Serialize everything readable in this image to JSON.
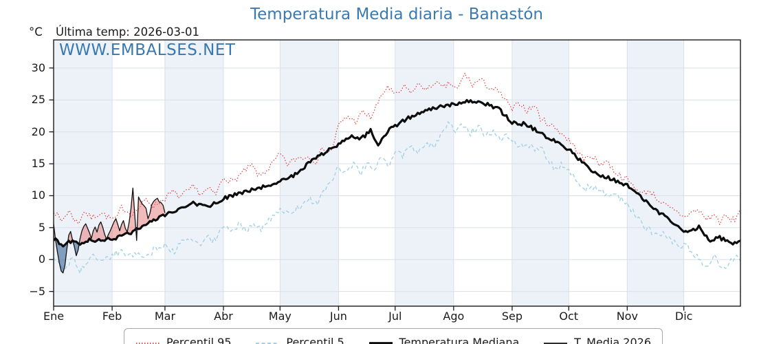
{
  "title": {
    "text": "Temperatura Media diaria - Banastón",
    "color": "#3c79ae"
  },
  "annotations": {
    "y_unit": "°C",
    "last_temp": "Última temp: 2026-03-01",
    "watermark": "WWW.EMBALSES.NET",
    "watermark_color": "#3878af"
  },
  "legend": {
    "items": [
      {
        "label": "Percentil 95"
      },
      {
        "label": "Percentil 5"
      },
      {
        "label": "Temperatura Mediana"
      },
      {
        "label": "T. Media 2026"
      }
    ]
  },
  "chart_data": {
    "type": "line",
    "title": "Temperatura Media diaria - Banastón",
    "ylabel": "°C",
    "x_axis": {
      "tick_labels": [
        "Ene",
        "Feb",
        "Mar",
        "Abr",
        "May",
        "Jun",
        "Jul",
        "Ago",
        "Sep",
        "Oct",
        "Nov",
        "Dic"
      ],
      "month_days": [
        31,
        28,
        31,
        30,
        31,
        30,
        31,
        31,
        30,
        31,
        30,
        31
      ]
    },
    "y_axis": {
      "ticks": [
        -5,
        0,
        5,
        10,
        15,
        20,
        25,
        30
      ],
      "range": [
        -7.3,
        34.4
      ],
      "minus_glyph": "−"
    },
    "background": {
      "odd_month_band": "#edf2f9",
      "even_month_band": "#ffffff",
      "grid_color": "#d9dfe8",
      "frame_color": "#1a1a1a"
    },
    "fills": {
      "between": [
        "T. Media 2026",
        "Temperatura Mediana"
      ],
      "above_color": "rgba(226,104,104,0.45)",
      "below_color": "rgba(60,100,150,0.60)"
    },
    "noise_seed": 7,
    "series": [
      {
        "name": "Percentil 95",
        "color": "#dd3c3c",
        "style": "dotted",
        "width": 1.2,
        "noise_amp": 0.5,
        "points": [
          [
            0,
            7.8
          ],
          [
            4,
            6.0
          ],
          [
            8,
            7.6
          ],
          [
            13,
            5.6
          ],
          [
            16,
            7.6
          ],
          [
            20,
            6.5
          ],
          [
            25,
            7.4
          ],
          [
            29,
            6.6
          ],
          [
            33,
            6.2
          ],
          [
            36,
            8.2
          ],
          [
            41,
            7.2
          ],
          [
            45,
            8.0
          ],
          [
            49,
            9.4
          ],
          [
            53,
            8.4
          ],
          [
            59,
            9.6
          ],
          [
            63,
            10.6
          ],
          [
            67,
            9.8
          ],
          [
            74,
            11.3
          ],
          [
            78,
            10.3
          ],
          [
            82,
            11.0
          ],
          [
            86,
            10.2
          ],
          [
            90,
            12.9
          ],
          [
            95,
            12.2
          ],
          [
            100,
            13.6
          ],
          [
            105,
            14.7
          ],
          [
            109,
            13.0
          ],
          [
            114,
            14.3
          ],
          [
            120,
            16.5
          ],
          [
            124,
            14.9
          ],
          [
            129,
            15.9
          ],
          [
            135,
            16.1
          ],
          [
            139,
            15.4
          ],
          [
            143,
            17.6
          ],
          [
            147,
            16.8
          ],
          [
            151,
            21.0
          ],
          [
            156,
            22.4
          ],
          [
            160,
            21.6
          ],
          [
            164,
            23.1
          ],
          [
            168,
            22.2
          ],
          [
            172,
            24.6
          ],
          [
            177,
            27.2
          ],
          [
            181,
            25.6
          ],
          [
            186,
            27.0
          ],
          [
            190,
            26.2
          ],
          [
            194,
            27.6
          ],
          [
            198,
            26.4
          ],
          [
            202,
            27.9
          ],
          [
            206,
            26.8
          ],
          [
            210,
            27.6
          ],
          [
            214,
            26.6
          ],
          [
            218,
            29.1
          ],
          [
            222,
            27.3
          ],
          [
            226,
            28.2
          ],
          [
            231,
            26.9
          ],
          [
            235,
            26.4
          ],
          [
            239,
            25.2
          ],
          [
            243,
            23.4
          ],
          [
            247,
            24.6
          ],
          [
            251,
            23.3
          ],
          [
            255,
            24.2
          ],
          [
            258,
            22.1
          ],
          [
            263,
            21.1
          ],
          [
            267,
            20.4
          ],
          [
            273,
            18.7
          ],
          [
            277,
            17.3
          ],
          [
            281,
            15.6
          ],
          [
            285,
            16.4
          ],
          [
            289,
            14.9
          ],
          [
            293,
            15.5
          ],
          [
            297,
            13.9
          ],
          [
            301,
            13.0
          ],
          [
            304,
            12.5
          ],
          [
            308,
            11.3
          ],
          [
            312,
            10.3
          ],
          [
            316,
            10.8
          ],
          [
            319,
            9.8
          ],
          [
            323,
            8.7
          ],
          [
            327,
            7.9
          ],
          [
            331,
            7.3
          ],
          [
            334,
            6.7
          ],
          [
            338,
            7.4
          ],
          [
            342,
            7.7
          ],
          [
            346,
            6.3
          ],
          [
            350,
            7.0
          ],
          [
            353,
            5.9
          ],
          [
            356,
            6.8
          ],
          [
            359,
            6.1
          ],
          [
            362,
            6.5
          ],
          [
            364,
            8.2
          ]
        ]
      },
      {
        "name": "Percentil 5",
        "color": "#a6d1e6",
        "style": "dashed",
        "width": 1.4,
        "noise_amp": 0.55,
        "points": [
          [
            0,
            0.4
          ],
          [
            3,
            -0.9
          ],
          [
            6,
            -1.4
          ],
          [
            10,
            0.2
          ],
          [
            14,
            -1.7
          ],
          [
            18,
            -0.3
          ],
          [
            22,
            0.6
          ],
          [
            26,
            -0.2
          ],
          [
            31,
            0.6
          ],
          [
            36,
            1.4
          ],
          [
            40,
            0.4
          ],
          [
            45,
            1.2
          ],
          [
            49,
            0.3
          ],
          [
            53,
            1.5
          ],
          [
            59,
            2.2
          ],
          [
            64,
            1.4
          ],
          [
            68,
            2.6
          ],
          [
            74,
            3.1
          ],
          [
            78,
            2.3
          ],
          [
            82,
            3.4
          ],
          [
            86,
            2.8
          ],
          [
            90,
            5.6
          ],
          [
            94,
            4.6
          ],
          [
            98,
            5.4
          ],
          [
            102,
            4.8
          ],
          [
            106,
            5.6
          ],
          [
            110,
            4.9
          ],
          [
            115,
            6.2
          ],
          [
            120,
            8.0
          ],
          [
            124,
            7.0
          ],
          [
            128,
            7.8
          ],
          [
            132,
            8.8
          ],
          [
            136,
            9.4
          ],
          [
            140,
            8.6
          ],
          [
            143,
            10.6
          ],
          [
            147,
            12.2
          ],
          [
            151,
            14.6
          ],
          [
            155,
            13.4
          ],
          [
            159,
            14.8
          ],
          [
            163,
            13.6
          ],
          [
            166,
            15.2
          ],
          [
            170,
            14.2
          ],
          [
            174,
            15.8
          ],
          [
            178,
            14.9
          ],
          [
            181,
            17.2
          ],
          [
            185,
            16.2
          ],
          [
            189,
            17.8
          ],
          [
            193,
            16.8
          ],
          [
            197,
            18.4
          ],
          [
            201,
            17.6
          ],
          [
            205,
            19.2
          ],
          [
            209,
            21.6
          ],
          [
            213,
            20.4
          ],
          [
            217,
            21.2
          ],
          [
            221,
            19.8
          ],
          [
            225,
            20.9
          ],
          [
            229,
            19.4
          ],
          [
            233,
            20.2
          ],
          [
            237,
            19.0
          ],
          [
            240,
            19.8
          ],
          [
            243,
            18.6
          ],
          [
            247,
            17.6
          ],
          [
            251,
            18.3
          ],
          [
            255,
            16.9
          ],
          [
            258,
            17.8
          ],
          [
            262,
            15.4
          ],
          [
            266,
            14.2
          ],
          [
            270,
            14.9
          ],
          [
            273,
            13.8
          ],
          [
            277,
            12.4
          ],
          [
            281,
            11.0
          ],
          [
            285,
            11.6
          ],
          [
            289,
            11.2
          ],
          [
            293,
            9.8
          ],
          [
            297,
            10.4
          ],
          [
            301,
            9.4
          ],
          [
            304,
            8.9
          ],
          [
            308,
            7.2
          ],
          [
            312,
            5.4
          ],
          [
            316,
            4.6
          ],
          [
            319,
            3.7
          ],
          [
            323,
            4.4
          ],
          [
            327,
            2.9
          ],
          [
            331,
            2.2
          ],
          [
            334,
            2.4
          ],
          [
            338,
            1.4
          ],
          [
            342,
            0.2
          ],
          [
            346,
            -1.2
          ],
          [
            350,
            0.4
          ],
          [
            353,
            -0.8
          ],
          [
            356,
            -1.9
          ],
          [
            359,
            -0.4
          ],
          [
            362,
            0.6
          ],
          [
            364,
            0.2
          ]
        ]
      },
      {
        "name": "Temperatura Mediana",
        "color": "#0d0d0d",
        "style": "solid",
        "width": 3.2,
        "noise_amp": 0.3,
        "points": [
          [
            0,
            3.2
          ],
          [
            5,
            2.3
          ],
          [
            8,
            2.8
          ],
          [
            14,
            2.6
          ],
          [
            20,
            3.1
          ],
          [
            26,
            2.9
          ],
          [
            31,
            3.3
          ],
          [
            38,
            3.8
          ],
          [
            45,
            4.8
          ],
          [
            52,
            5.9
          ],
          [
            59,
            6.9
          ],
          [
            66,
            7.8
          ],
          [
            74,
            8.8
          ],
          [
            82,
            8.2
          ],
          [
            90,
            9.6
          ],
          [
            97,
            10.2
          ],
          [
            105,
            10.9
          ],
          [
            112,
            11.4
          ],
          [
            120,
            12.3
          ],
          [
            128,
            13.3
          ],
          [
            135,
            15.0
          ],
          [
            143,
            16.6
          ],
          [
            151,
            18.1
          ],
          [
            158,
            19.4
          ],
          [
            163,
            18.9
          ],
          [
            168,
            20.2
          ],
          [
            172,
            17.8
          ],
          [
            177,
            20.0
          ],
          [
            181,
            21.0
          ],
          [
            189,
            22.3
          ],
          [
            196,
            23.0
          ],
          [
            205,
            24.1
          ],
          [
            212,
            24.3
          ],
          [
            220,
            24.8
          ],
          [
            228,
            24.4
          ],
          [
            235,
            23.8
          ],
          [
            243,
            21.5
          ],
          [
            250,
            21.2
          ],
          [
            258,
            19.8
          ],
          [
            266,
            18.4
          ],
          [
            273,
            17.3
          ],
          [
            281,
            15.0
          ],
          [
            288,
            13.2
          ],
          [
            296,
            12.6
          ],
          [
            304,
            11.6
          ],
          [
            312,
            9.6
          ],
          [
            319,
            7.7
          ],
          [
            326,
            6.3
          ],
          [
            331,
            5.2
          ],
          [
            334,
            4.2
          ],
          [
            340,
            4.8
          ],
          [
            342,
            5.1
          ],
          [
            348,
            2.9
          ],
          [
            352,
            3.6
          ],
          [
            356,
            3.0
          ],
          [
            360,
            2.6
          ],
          [
            364,
            2.8
          ]
        ]
      },
      {
        "name": "T. Media 2026",
        "color": "#111111",
        "style": "solid",
        "width": 1.3,
        "start_day": 0,
        "values": [
          5.6,
          3.1,
          1.2,
          -0.5,
          -1.8,
          -2.1,
          -0.9,
          1.6,
          3.8,
          4.4,
          3.1,
          2.0,
          0.6,
          1.5,
          3.3,
          4.5,
          5.2,
          5.6,
          4.9,
          4.2,
          3.3,
          4.5,
          5.1,
          4.3,
          5.4,
          5.9,
          5.1,
          4.0,
          3.2,
          3.9,
          4.5,
          5.2,
          5.9,
          6.4,
          5.5,
          4.5,
          5.5,
          6.1,
          4.9,
          4.3,
          5.8,
          8.0,
          11.2,
          7.0,
          3.0,
          9.8,
          9.2,
          8.7,
          8.4,
          8.0,
          6.4,
          7.2,
          8.6,
          9.1,
          9.4,
          9.6,
          9.0,
          8.9,
          8.5,
          7.3
        ]
      }
    ]
  }
}
